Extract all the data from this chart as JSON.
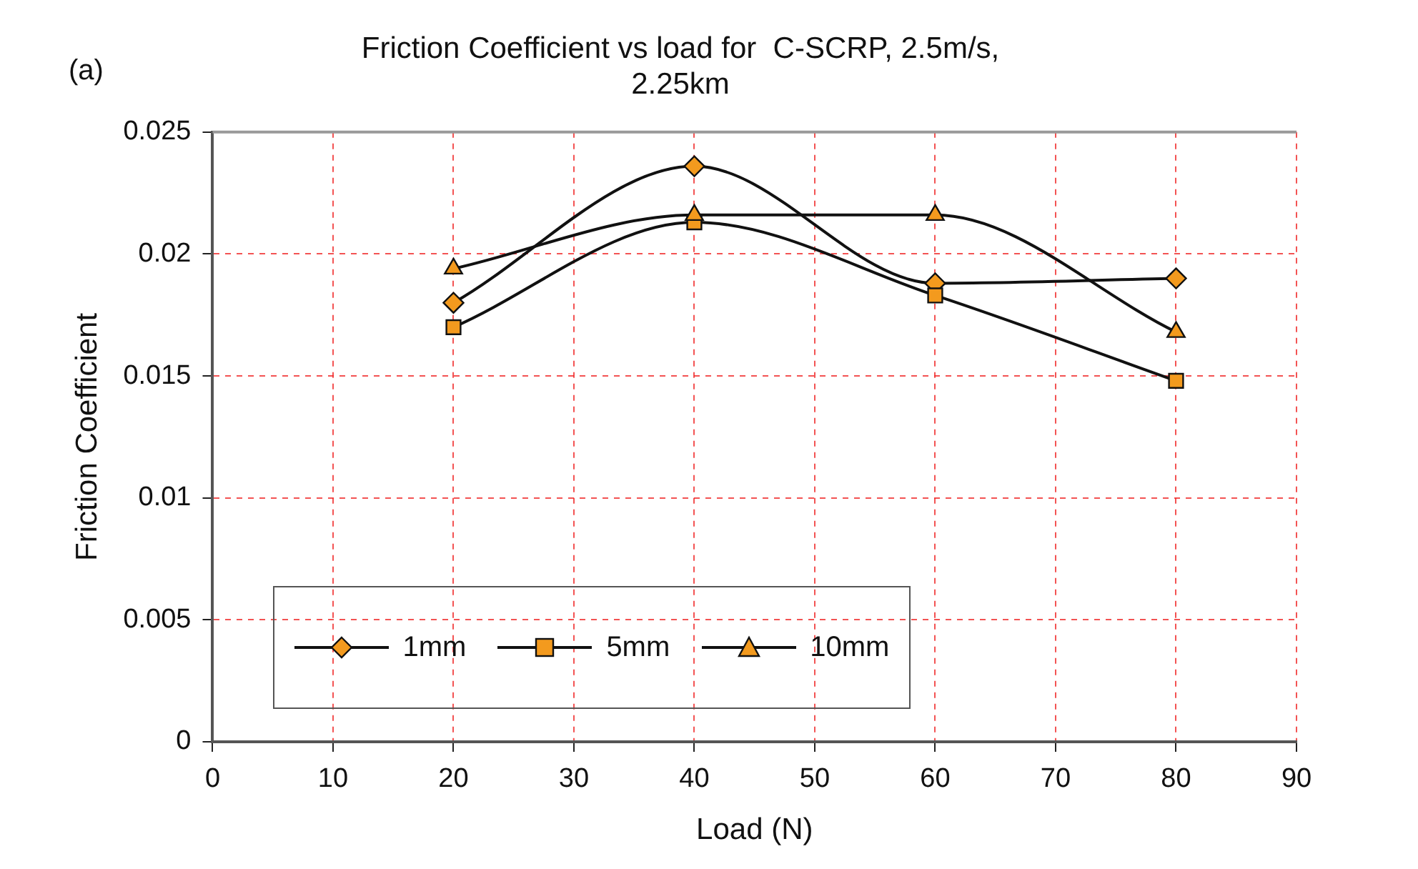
{
  "chart_data": {
    "type": "line",
    "title": "Friction Coefficient vs load for  C-SCRP, 2.5m/s, 2.25km",
    "xlabel": "Load (N)",
    "ylabel": "Friction Coefficient",
    "annotations": [
      "(a)"
    ],
    "x": [
      20,
      40,
      60,
      80
    ],
    "series": [
      {
        "name": "1mm",
        "color": "#f39a1e",
        "marker": "diamond",
        "values": [
          0.018,
          0.0236,
          0.0188,
          0.019
        ]
      },
      {
        "name": "5mm",
        "color": "#f39a1e",
        "marker": "square",
        "values": [
          0.017,
          0.0213,
          0.0183,
          0.0148
        ]
      },
      {
        "name": "10mm",
        "color": "#f39a1e",
        "marker": "triangle",
        "values": [
          0.0194,
          0.0216,
          0.0216,
          0.0168
        ]
      }
    ],
    "xlim": [
      0,
      90
    ],
    "xticks": [
      0,
      10,
      20,
      30,
      40,
      50,
      60,
      70,
      80,
      90
    ],
    "ylim": [
      0,
      0.025
    ],
    "yticks": [
      0,
      0.005,
      0.01,
      0.015,
      0.02,
      0.025
    ],
    "grid": true,
    "legend": "bottom left"
  }
}
